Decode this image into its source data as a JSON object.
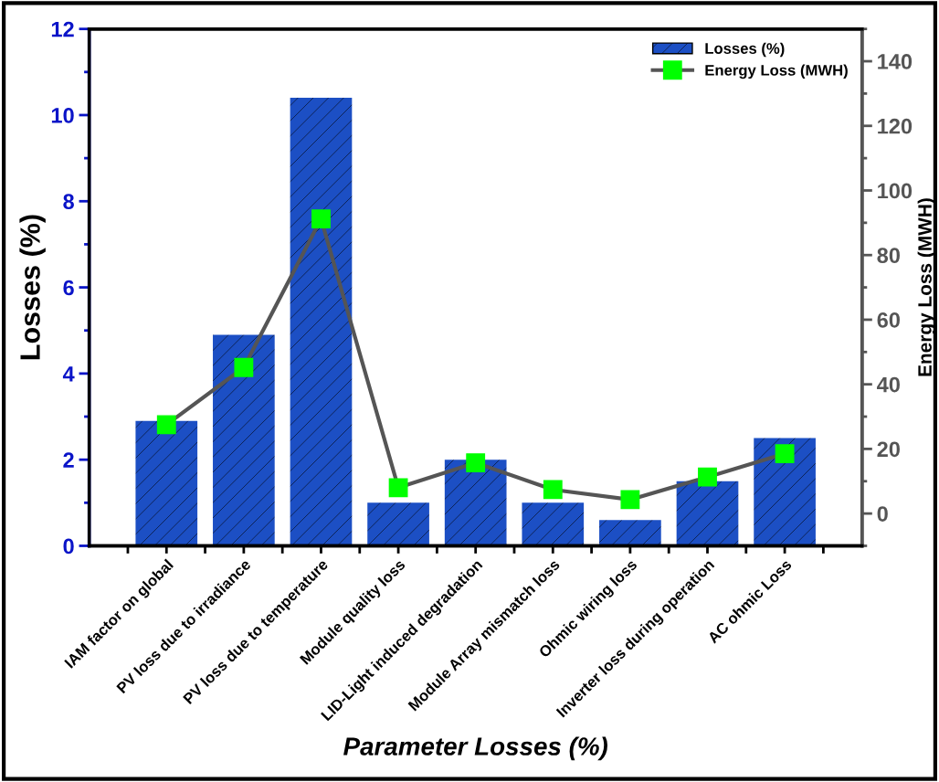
{
  "chart_data": {
    "type": "bar",
    "xlabel": "Parameter Losses (%)",
    "ylabel": "Losses (%)",
    "y2label": "Energy Loss (MWH)",
    "categories": [
      "IAM factor on global",
      "PV loss due to irradiance",
      "PV loss due to temperature",
      "Module quality loss",
      "LID-Light induced degradation",
      "Module Array mismatch loss",
      "Ohmic wiring loss",
      "Inverter loss during operation",
      "AC ohmic Loss"
    ],
    "series": [
      {
        "name": "Losses (%)",
        "color": "#1c4fc4",
        "values": [
          2.9,
          4.9,
          10.4,
          1.0,
          2.0,
          1.0,
          0.6,
          1.5,
          2.5
        ]
      },
      {
        "name": "Energy Loss (MWH)",
        "type": "line",
        "axis": "y2",
        "color": "#00ff00",
        "values": [
          27.5,
          45.2,
          91.2,
          8.0,
          15.7,
          7.4,
          4.3,
          11.3,
          18.5
        ]
      }
    ],
    "ylim": [
      0,
      12
    ],
    "yticks": [
      0,
      2,
      4,
      6,
      8,
      10,
      12
    ],
    "y2lim": [
      -10,
      150
    ],
    "y2ticks": [
      0,
      20,
      40,
      60,
      80,
      100,
      120,
      140
    ],
    "legend": "top right",
    "marker": "square",
    "grid": false
  }
}
